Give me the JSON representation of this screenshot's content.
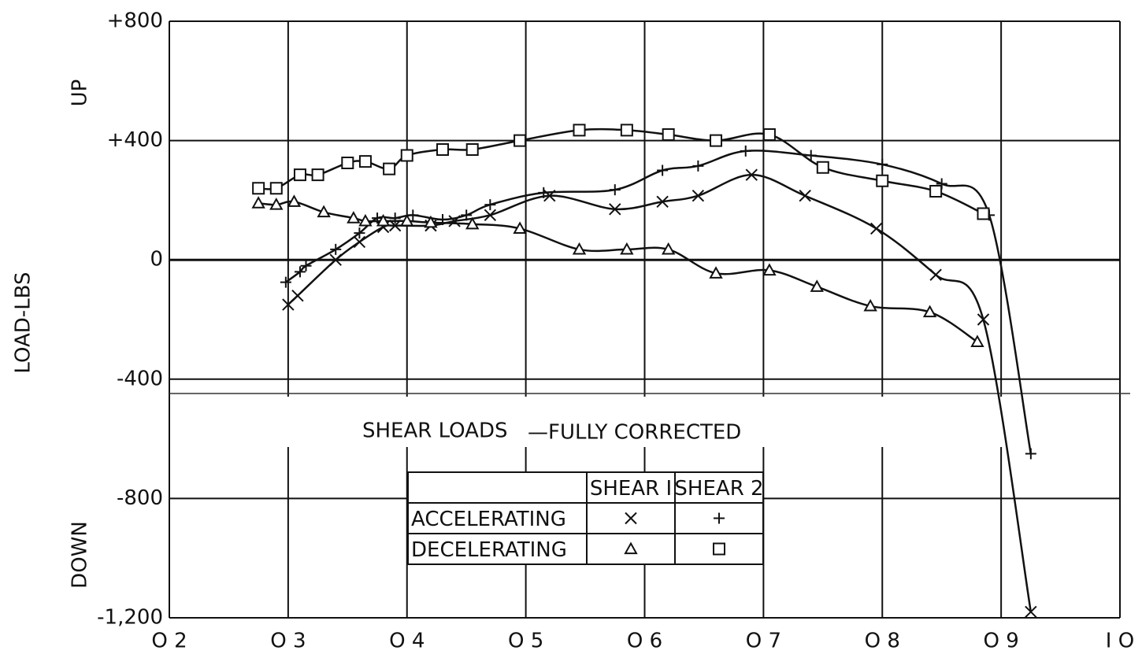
{
  "chart_data": {
    "type": "line",
    "title": "SHEAR LOADS",
    "subtitle": "—FULLY CORRECTED",
    "y_label": "LOAD-LBS",
    "y_up_label": "UP",
    "y_down_label": "DOWN",
    "xlim": [
      0.2,
      1.0
    ],
    "xticks": [
      {
        "value": 0.2,
        "label": "O 2"
      },
      {
        "value": 0.3,
        "label": "O 3"
      },
      {
        "value": 0.4,
        "label": "O 4"
      },
      {
        "value": 0.5,
        "label": "O 5"
      },
      {
        "value": 0.6,
        "label": "O 6"
      },
      {
        "value": 0.7,
        "label": "O 7"
      },
      {
        "value": 0.8,
        "label": "O 8"
      },
      {
        "value": 0.9,
        "label": "O 9"
      },
      {
        "value": 1.0,
        "label": "I O"
      }
    ],
    "ylim": [
      -1200,
      800
    ],
    "yticks": [
      {
        "value": 800,
        "label": "+800"
      },
      {
        "value": 400,
        "label": "+400"
      },
      0,
      -400,
      -800,
      {
        "value": -1200,
        "label": "-1,200"
      }
    ],
    "grid": true,
    "legend": {
      "columns": [
        "SHEAR I",
        "SHEAR 2"
      ],
      "rows": [
        "ACCELERATING",
        "DECELERATING"
      ]
    },
    "series": [
      {
        "marker": "x",
        "color": "#111111",
        "x": [
          0.3,
          0.308,
          0.34,
          0.36,
          0.38,
          0.39,
          0.42,
          0.44,
          0.47,
          0.52,
          0.575,
          0.615,
          0.645,
          0.69,
          0.735,
          0.795,
          0.845,
          0.885,
          0.925
        ],
        "values": [
          -150,
          -120,
          0,
          60,
          110,
          115,
          115,
          130,
          150,
          215,
          170,
          195,
          215,
          285,
          215,
          105,
          -50,
          -200,
          -1180
        ]
      },
      {
        "marker": "plus",
        "color": "#111111",
        "x": [
          0.298,
          0.31,
          0.315,
          0.34,
          0.36,
          0.375,
          0.39,
          0.405,
          0.43,
          0.45,
          0.47,
          0.515,
          0.575,
          0.615,
          0.645,
          0.685,
          0.74,
          0.8,
          0.85,
          0.89,
          0.925
        ],
        "values": [
          -75,
          -40,
          -20,
          35,
          90,
          140,
          140,
          150,
          135,
          150,
          185,
          225,
          235,
          300,
          315,
          365,
          350,
          320,
          255,
          150,
          -650
        ]
      },
      {
        "marker": "triangle",
        "color": "#111111",
        "x": [
          0.275,
          0.29,
          0.305,
          0.33,
          0.355,
          0.365,
          0.38,
          0.4,
          0.42,
          0.455,
          0.495,
          0.545,
          0.585,
          0.62,
          0.66,
          0.705,
          0.745,
          0.79,
          0.84,
          0.88
        ],
        "values": [
          190,
          185,
          195,
          160,
          140,
          130,
          130,
          130,
          125,
          120,
          105,
          35,
          35,
          35,
          -45,
          -35,
          -90,
          -155,
          -175,
          -275
        ]
      },
      {
        "marker": "square",
        "color": "#111111",
        "x": [
          0.275,
          0.29,
          0.31,
          0.325,
          0.35,
          0.365,
          0.385,
          0.4,
          0.43,
          0.455,
          0.495,
          0.545,
          0.585,
          0.62,
          0.66,
          0.705,
          0.75,
          0.8,
          0.845,
          0.885
        ],
        "values": [
          240,
          240,
          285,
          285,
          325,
          330,
          305,
          350,
          370,
          370,
          400,
          435,
          435,
          420,
          400,
          420,
          310,
          265,
          230,
          155
        ]
      }
    ]
  }
}
